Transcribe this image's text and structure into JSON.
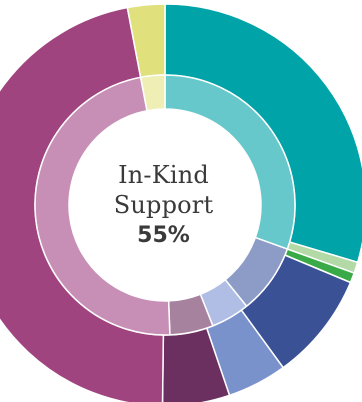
{
  "chart_data": {
    "type": "pie",
    "style": "nested-donut",
    "center_label": {
      "title_line1": "In-Kind",
      "title_line2": "Support",
      "value": "55%"
    },
    "outer_ring": [
      {
        "value": 29.6,
        "color": "#00a3a8"
      },
      {
        "value": 0.9,
        "color": "#b3d9a6"
      },
      {
        "value": 0.8,
        "color": "#3aaa48"
      },
      {
        "value": 8.7,
        "color": "#3a5295"
      },
      {
        "value": 4.8,
        "color": "#7a92cc"
      },
      {
        "value": 5.4,
        "color": "#6b3060"
      },
      {
        "value": 46.8,
        "color": "#a04480"
      },
      {
        "value": 3.0,
        "color": "#e0e07c"
      }
    ],
    "inner_ring": [
      {
        "value": 30.5,
        "color": "#66c8ca"
      },
      {
        "value": 8.7,
        "color": "#8d9cc7"
      },
      {
        "value": 4.8,
        "color": "#b0bde5"
      },
      {
        "value": 5.4,
        "color": "#a6829e"
      },
      {
        "value": 47.6,
        "color": "#c78fb5"
      },
      {
        "value": 3.0,
        "color": "#eeeeb5"
      }
    ]
  }
}
